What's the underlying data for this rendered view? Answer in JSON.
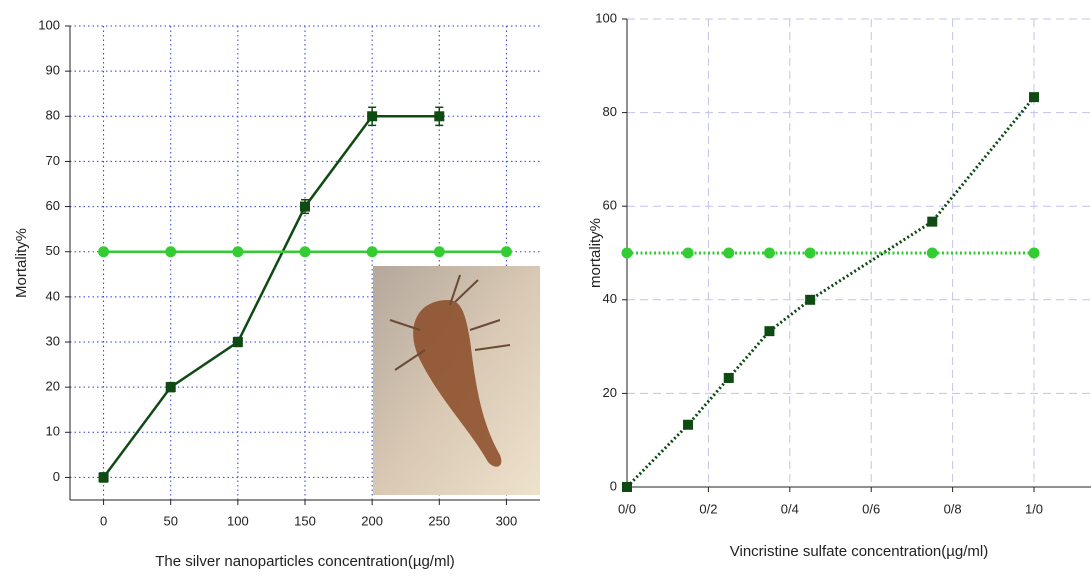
{
  "chart_data": [
    {
      "type": "line",
      "x_label": "The silver nanoparticles concentration(µg/ml)",
      "y_label": "Mortality%",
      "xlim": [
        -25,
        325
      ],
      "ylim": [
        -5,
        100
      ],
      "xticks": [
        0,
        50,
        100,
        150,
        200,
        250,
        300
      ],
      "yticks": [
        0,
        10,
        20,
        30,
        40,
        50,
        60,
        70,
        80,
        90,
        100
      ],
      "grid": "dotted",
      "series": [
        {
          "color": "#0f4a12",
          "marker": "square",
          "line_style": "solid",
          "x": [
            0,
            50,
            100,
            150,
            200,
            250
          ],
          "values": [
            0,
            20,
            30,
            60,
            80,
            80
          ],
          "errors": [
            1,
            1,
            1,
            1.5,
            2,
            2
          ]
        },
        {
          "color": "#33cc33",
          "marker": "circle",
          "line_style": "solid",
          "x": [
            0,
            50,
            100,
            150,
            200,
            250,
            300
          ],
          "values": [
            50,
            50,
            50,
            50,
            50,
            50,
            50
          ]
        }
      ]
    },
    {
      "type": "line",
      "x_label": "Vincristine sulfate concentration(µg/ml)",
      "y_label": "mortality%",
      "xlim": [
        0,
        1.14
      ],
      "ylim": [
        0,
        100
      ],
      "xticks": [
        {
          "value": 0,
          "label": "0/0"
        },
        {
          "value": 0.2,
          "label": "0/2"
        },
        {
          "value": 0.4,
          "label": "0/4"
        },
        {
          "value": 0.6,
          "label": "0/6"
        },
        {
          "value": 0.8,
          "label": "0/8"
        },
        {
          "value": 1.0,
          "label": "1/0"
        }
      ],
      "yticks": [
        0,
        20,
        40,
        60,
        80,
        100
      ],
      "grid": "dashed",
      "series": [
        {
          "color": "#0f4a12",
          "marker": "square",
          "line_style": "dotted",
          "x": [
            0,
            0.15,
            0.25,
            0.35,
            0.45,
            0.75,
            1.0
          ],
          "values": [
            0,
            13.3,
            23.3,
            33.3,
            40,
            56.7,
            83.3
          ]
        },
        {
          "color": "#33cc33",
          "marker": "circle",
          "line_style": "dotted",
          "x": [
            0,
            0.15,
            0.25,
            0.35,
            0.45,
            0.75,
            1.0
          ],
          "values": [
            50,
            50,
            50,
            50,
            50,
            50,
            50
          ]
        }
      ]
    }
  ]
}
